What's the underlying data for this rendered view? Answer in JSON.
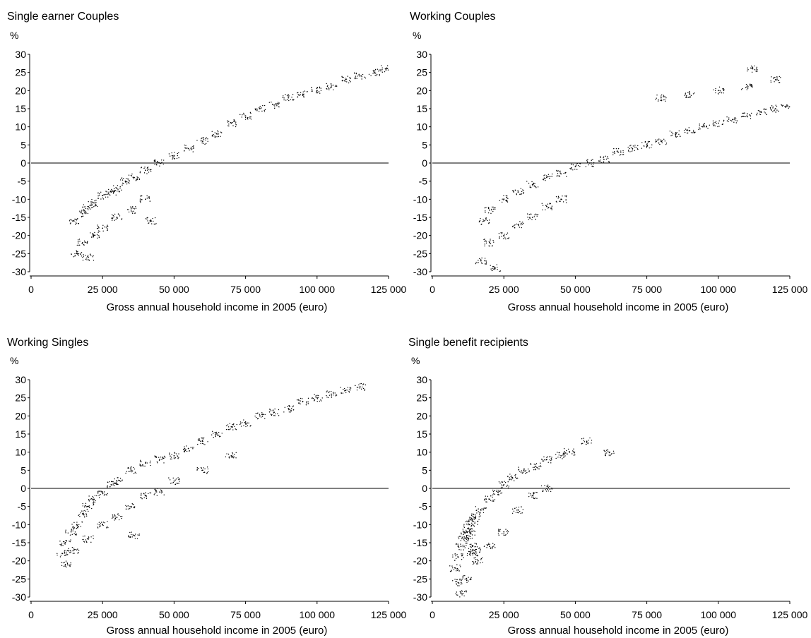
{
  "chart_data": [
    {
      "type": "scatter",
      "title": "Single earner Couples",
      "ylabel": "%",
      "xlabel": "Gross annual household income in 2005 (euro)",
      "xlim": [
        0,
        125000
      ],
      "ylim": [
        -30,
        30
      ],
      "xticks": [
        "0",
        "25 000",
        "50 000",
        "75 000",
        "100 000",
        "125 000"
      ],
      "yticks": [
        "30",
        "25",
        "20",
        "15",
        "10",
        "5",
        "0",
        "-5",
        "-10",
        "-15",
        "-20",
        "-25",
        "-30"
      ],
      "reference_line_y": 0,
      "point_color": "#000000",
      "series": [
        {
          "points": [
            [
              15000,
              -16
            ],
            [
              18000,
              -14
            ],
            [
              20000,
              -12
            ],
            [
              22000,
              -11
            ],
            [
              25000,
              -9
            ],
            [
              28000,
              -8
            ],
            [
              30000,
              -7
            ],
            [
              33000,
              -5
            ],
            [
              36000,
              -4
            ],
            [
              40000,
              -2
            ],
            [
              45000,
              0
            ],
            [
              50000,
              2
            ],
            [
              55000,
              4
            ],
            [
              60000,
              6
            ],
            [
              65000,
              8
            ],
            [
              70000,
              11
            ],
            [
              75000,
              13
            ],
            [
              80000,
              15
            ],
            [
              85000,
              16
            ],
            [
              90000,
              18
            ],
            [
              95000,
              19
            ],
            [
              100000,
              20
            ],
            [
              105000,
              21
            ],
            [
              110000,
              23
            ],
            [
              115000,
              24
            ],
            [
              120000,
              25
            ],
            [
              124000,
              26
            ],
            [
              16000,
              -25
            ],
            [
              18000,
              -22
            ],
            [
              20000,
              -26
            ],
            [
              22000,
              -20
            ],
            [
              25000,
              -18
            ],
            [
              30000,
              -15
            ],
            [
              35000,
              -13
            ],
            [
              40000,
              -10
            ],
            [
              42000,
              -16
            ]
          ]
        }
      ]
    },
    {
      "type": "scatter",
      "title": "Working Couples",
      "ylabel": "%",
      "xlabel": "Gross annual household income in 2005 (euro)",
      "xlim": [
        0,
        125000
      ],
      "ylim": [
        -30,
        30
      ],
      "xticks": [
        "0",
        "25 000",
        "50 000",
        "75 000",
        "100 000",
        "125 000"
      ],
      "yticks": [
        "30",
        "25",
        "20",
        "15",
        "10",
        "5",
        "0",
        "-5",
        "-10",
        "-15",
        "-20",
        "-25",
        "-30"
      ],
      "reference_line_y": 0,
      "point_color": "#000000",
      "series": [
        {
          "points": [
            [
              18000,
              -16
            ],
            [
              20000,
              -13
            ],
            [
              25000,
              -10
            ],
            [
              30000,
              -8
            ],
            [
              35000,
              -6
            ],
            [
              40000,
              -4
            ],
            [
              45000,
              -3
            ],
            [
              50000,
              -1
            ],
            [
              55000,
              0
            ],
            [
              60000,
              1
            ],
            [
              65000,
              3
            ],
            [
              70000,
              4
            ],
            [
              75000,
              5
            ],
            [
              80000,
              6
            ],
            [
              85000,
              8
            ],
            [
              90000,
              9
            ],
            [
              95000,
              10
            ],
            [
              100000,
              11
            ],
            [
              105000,
              12
            ],
            [
              110000,
              13
            ],
            [
              115000,
              14
            ],
            [
              120000,
              15
            ],
            [
              124000,
              16
            ],
            [
              20000,
              -22
            ],
            [
              25000,
              -20
            ],
            [
              30000,
              -17
            ],
            [
              35000,
              -15
            ],
            [
              40000,
              -12
            ],
            [
              45000,
              -10
            ],
            [
              80000,
              18
            ],
            [
              90000,
              19
            ],
            [
              100000,
              20
            ],
            [
              110000,
              21
            ],
            [
              120000,
              23
            ],
            [
              112000,
              26
            ],
            [
              17000,
              -27
            ],
            [
              22000,
              -29
            ]
          ]
        }
      ]
    },
    {
      "type": "scatter",
      "title": "Working Singles",
      "ylabel": "%",
      "xlabel": "Gross annual household income in 2005 (euro)",
      "xlim": [
        0,
        125000
      ],
      "ylim": [
        -30,
        30
      ],
      "xticks": [
        "0",
        "25 000",
        "50 000",
        "75 000",
        "100 000",
        "125 000"
      ],
      "yticks": [
        "30",
        "25",
        "20",
        "15",
        "10",
        "5",
        "0",
        "-5",
        "-10",
        "-15",
        "-20",
        "-25",
        "-30"
      ],
      "reference_line_y": 0,
      "point_color": "#000000",
      "series": [
        {
          "points": [
            [
              11000,
              -18
            ],
            [
              12000,
              -15
            ],
            [
              14000,
              -12
            ],
            [
              16000,
              -10
            ],
            [
              18000,
              -7
            ],
            [
              20000,
              -5
            ],
            [
              22000,
              -3
            ],
            [
              25000,
              -1
            ],
            [
              28000,
              1
            ],
            [
              30000,
              2
            ],
            [
              35000,
              5
            ],
            [
              40000,
              7
            ],
            [
              45000,
              8
            ],
            [
              50000,
              9
            ],
            [
              55000,
              11
            ],
            [
              60000,
              13
            ],
            [
              65000,
              15
            ],
            [
              70000,
              17
            ],
            [
              75000,
              18
            ],
            [
              80000,
              20
            ],
            [
              85000,
              21
            ],
            [
              90000,
              22
            ],
            [
              95000,
              24
            ],
            [
              100000,
              25
            ],
            [
              105000,
              26
            ],
            [
              110000,
              27
            ],
            [
              115000,
              28
            ],
            [
              12000,
              -21
            ],
            [
              15000,
              -17
            ],
            [
              20000,
              -14
            ],
            [
              25000,
              -10
            ],
            [
              30000,
              -8
            ],
            [
              35000,
              -5
            ],
            [
              40000,
              -2
            ],
            [
              45000,
              -1
            ],
            [
              50000,
              2
            ],
            [
              60000,
              5
            ],
            [
              70000,
              9
            ],
            [
              36000,
              -13
            ]
          ]
        }
      ]
    },
    {
      "type": "scatter",
      "title": "Single benefit recipients",
      "ylabel": "%",
      "xlabel": "Gross annual household income in 2005 (euro)",
      "xlim": [
        0,
        125000
      ],
      "ylim": [
        -30,
        30
      ],
      "xticks": [
        "0",
        "25 000",
        "50 000",
        "75 000",
        "100 000",
        "125 000"
      ],
      "yticks": [
        "30",
        "25",
        "20",
        "15",
        "10",
        "5",
        "0",
        "-5",
        "-10",
        "-15",
        "-20",
        "-25",
        "-30"
      ],
      "reference_line_y": 0,
      "point_color": "#000000",
      "series": [
        {
          "points": [
            [
              8000,
              -22
            ],
            [
              9000,
              -19
            ],
            [
              10000,
              -16
            ],
            [
              11000,
              -14
            ],
            [
              12000,
              -12
            ],
            [
              13000,
              -10
            ],
            [
              14000,
              -9
            ],
            [
              15000,
              -8
            ],
            [
              17000,
              -6
            ],
            [
              20000,
              -3
            ],
            [
              23000,
              -1
            ],
            [
              25000,
              1
            ],
            [
              28000,
              3
            ],
            [
              32000,
              5
            ],
            [
              36000,
              6
            ],
            [
              40000,
              8
            ],
            [
              45000,
              9
            ],
            [
              48000,
              10
            ],
            [
              54000,
              13
            ],
            [
              62000,
              10
            ],
            [
              12000,
              -13
            ],
            [
              13000,
              -12
            ],
            [
              14000,
              -16
            ],
            [
              15000,
              -17
            ],
            [
              14000,
              -18
            ],
            [
              9000,
              -26
            ],
            [
              10000,
              -29
            ],
            [
              12000,
              -25
            ],
            [
              16000,
              -20
            ],
            [
              20000,
              -16
            ],
            [
              25000,
              -12
            ],
            [
              30000,
              -6
            ],
            [
              35000,
              -2
            ],
            [
              40000,
              0
            ]
          ]
        }
      ]
    }
  ]
}
